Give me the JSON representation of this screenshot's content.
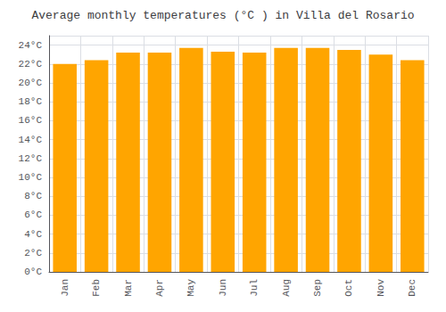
{
  "chart_data": {
    "type": "bar",
    "title": "Average monthly temperatures (°C ) in Villa del Rosario",
    "categories": [
      "Jan",
      "Feb",
      "Mar",
      "Apr",
      "May",
      "Jun",
      "Jul",
      "Aug",
      "Sep",
      "Oct",
      "Nov",
      "Dec"
    ],
    "values": [
      22.0,
      22.4,
      23.2,
      23.2,
      23.7,
      23.3,
      23.2,
      23.7,
      23.7,
      23.5,
      23.0,
      22.4
    ],
    "color": "#FFA500",
    "ylim": [
      0,
      25
    ],
    "yticks": [
      {
        "value": 0,
        "label": "0°C"
      },
      {
        "value": 2,
        "label": "2°C"
      },
      {
        "value": 4,
        "label": "4°C"
      },
      {
        "value": 6,
        "label": "6°C"
      },
      {
        "value": 8,
        "label": "8°C"
      },
      {
        "value": 10,
        "label": "10°C"
      },
      {
        "value": 12,
        "label": "12°C"
      },
      {
        "value": 14,
        "label": "14°C"
      },
      {
        "value": 16,
        "label": "16°C"
      },
      {
        "value": 18,
        "label": "18°C"
      },
      {
        "value": 20,
        "label": "20°C"
      },
      {
        "value": 22,
        "label": "22°C"
      },
      {
        "value": 24,
        "label": "24°C"
      }
    ],
    "grid": true
  }
}
